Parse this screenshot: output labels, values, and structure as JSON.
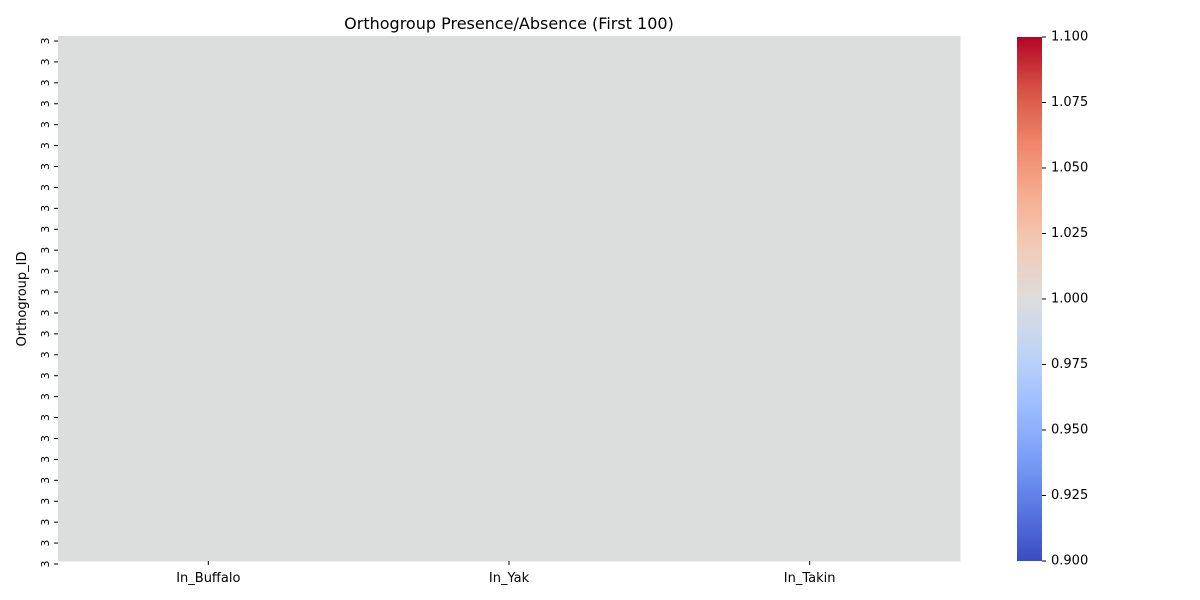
{
  "chart_data": {
    "type": "heatmap",
    "title": "Orthogroup Presence/Absence (First 100)",
    "xlabel": "",
    "ylabel": "Orthogroup_ID",
    "x_categories": [
      "In_Buffalo",
      "In_Yak",
      "In_Takin"
    ],
    "y_tick_labels": [
      "3",
      "3",
      "3",
      "3",
      "3",
      "3",
      "3",
      "3",
      "3",
      "3",
      "3",
      "3",
      "3",
      "3",
      "3",
      "3",
      "3",
      "3",
      "3",
      "3",
      "3",
      "3",
      "3",
      "3",
      "3",
      "3"
    ],
    "values_note_free": true,
    "cell_value": 1.0,
    "colormap": "coolwarm",
    "cell_color": "#dcdddd",
    "colorbar": {
      "min": 0.9,
      "max": 1.1,
      "ticks": [
        "0.900",
        "0.925",
        "0.950",
        "0.975",
        "1.000",
        "1.025",
        "1.050",
        "1.075",
        "1.100"
      ],
      "colors": [
        "#3b4cc0",
        "#5977e3",
        "#7b9ff9",
        "#9ebeff",
        "#c0d4f5",
        "#dddcdc",
        "#f2cbb7",
        "#f7ac8e",
        "#ee8468",
        "#d65244",
        "#b40426"
      ]
    }
  }
}
